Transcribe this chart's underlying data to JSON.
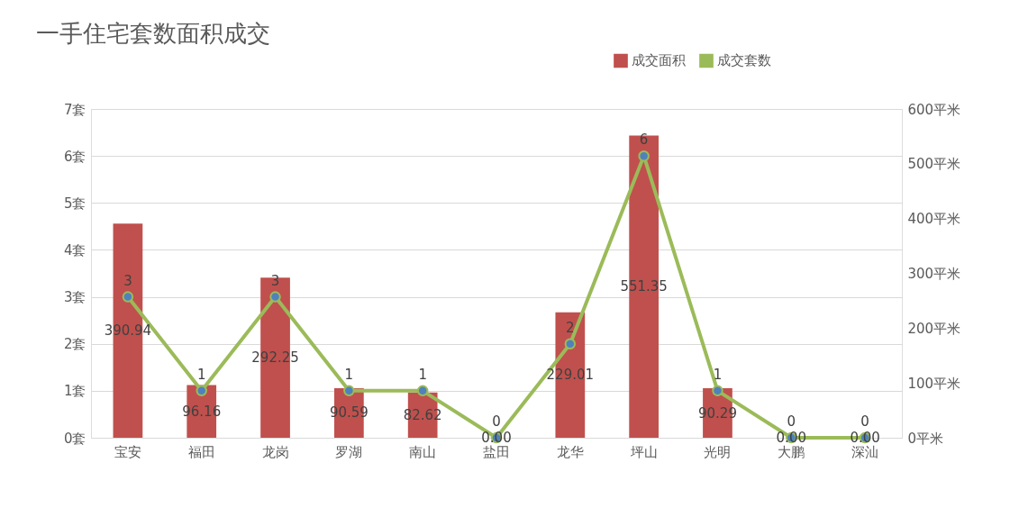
{
  "chart_data": {
    "type": "bar",
    "title": "一手住宅套数面积成交",
    "categories": [
      "宝安",
      "福田",
      "龙岗",
      "罗湖",
      "南山",
      "盐田",
      "龙华",
      "坪山",
      "光明",
      "大鹏",
      "深汕"
    ],
    "series": [
      {
        "name": "成交面积",
        "axis": "y2",
        "color": "#c0504d",
        "values": [
          390.94,
          96.16,
          292.25,
          90.59,
          82.62,
          0.0,
          229.01,
          551.35,
          90.29,
          0.0,
          0.0
        ],
        "value_labels": [
          "390.94",
          "96.16",
          "292.25",
          "90.59",
          "82.62",
          "0.00",
          "229.01",
          "551.35",
          "90.29",
          "0.00",
          "0.00"
        ]
      },
      {
        "name": "成交套数",
        "type": "line",
        "color": "#9bbb59",
        "values": [
          3,
          1,
          3,
          1,
          1,
          0,
          2,
          6,
          1,
          0,
          0
        ],
        "data_labels": true,
        "marker": "circle"
      }
    ],
    "ylim": [
      0,
      7
    ],
    "yticks": [
      {
        "value": 0,
        "label": "0套"
      },
      {
        "value": 1,
        "label": "1套"
      },
      {
        "value": 2,
        "label": "2套"
      },
      {
        "value": 3,
        "label": "3套"
      },
      {
        "value": 4,
        "label": "4套"
      },
      {
        "value": 5,
        "label": "5套"
      },
      {
        "value": 6,
        "label": "6套"
      },
      {
        "value": 7,
        "label": "7套"
      }
    ],
    "y2lim": [
      0,
      600
    ],
    "y2ticks": [
      {
        "value": 0,
        "label": "0平米"
      },
      {
        "value": 100,
        "label": "100平米"
      },
      {
        "value": 200,
        "label": "200平米"
      },
      {
        "value": 300,
        "label": "300平米"
      },
      {
        "value": 400,
        "label": "400平米"
      },
      {
        "value": 500,
        "label": "500平米"
      },
      {
        "value": 600,
        "label": "600平米"
      }
    ],
    "grid": "y",
    "legend": "top right"
  }
}
